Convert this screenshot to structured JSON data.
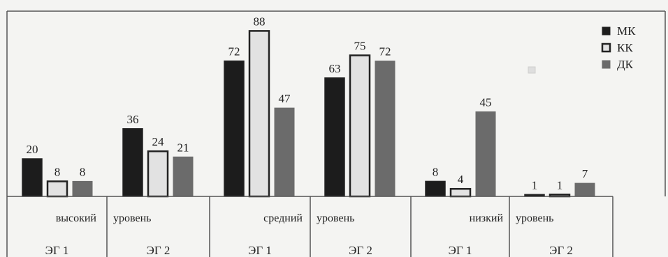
{
  "chart_data": {
    "type": "bar",
    "categories": [
      "ЭГ 1",
      "ЭГ 2",
      "ЭГ 1",
      "ЭГ 2",
      "ЭГ 1",
      "ЭГ 2"
    ],
    "level_labels": [
      "высокий",
      "уровень",
      "средний",
      "уровень",
      "низкий",
      "уровень"
    ],
    "series": [
      {
        "name": "МК",
        "values": [
          20,
          36,
          72,
          63,
          8,
          1
        ],
        "color": "#1c1c1c"
      },
      {
        "name": "КК",
        "values": [
          8,
          24,
          88,
          75,
          4,
          1
        ],
        "color": "#e2e2e2"
      },
      {
        "name": "ДК",
        "values": [
          8,
          21,
          47,
          72,
          45,
          7
        ],
        "color": "#6b6b6b"
      }
    ],
    "ylim": [
      0,
      90
    ],
    "legend_position": "top-right",
    "grid": false
  }
}
